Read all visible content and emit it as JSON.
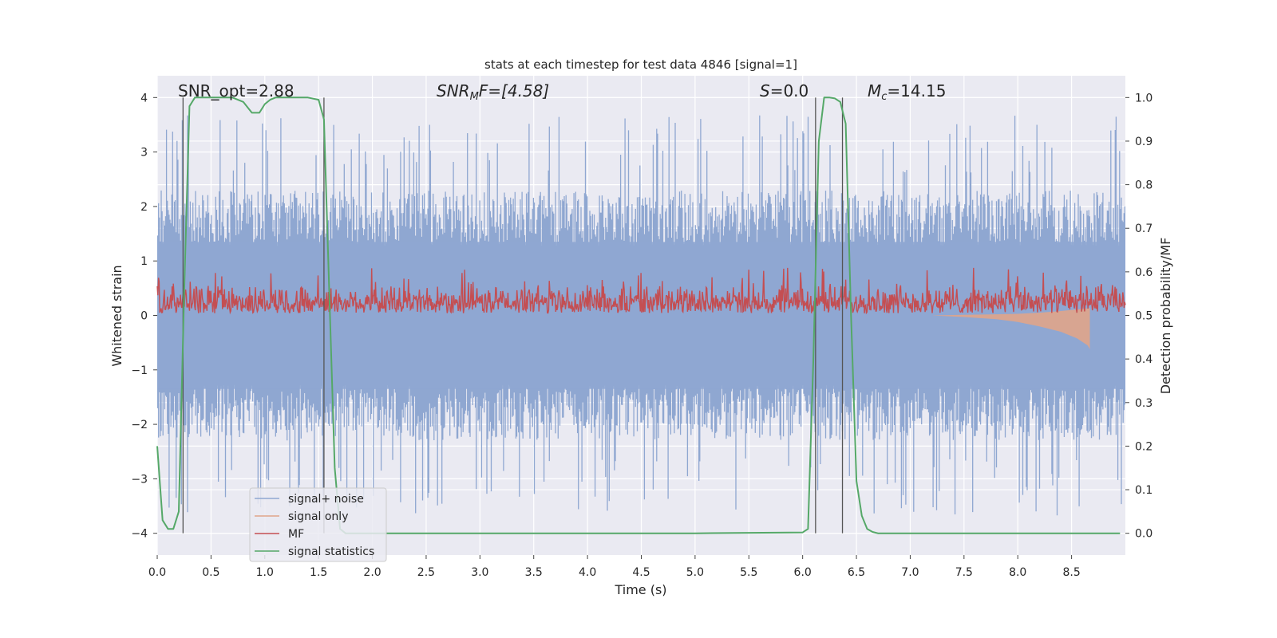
{
  "chart_data": {
    "type": "line",
    "title": "stats at each timestep for test data 4846 [signal=1]",
    "xlabel": "Time (s)",
    "ylabel_left": "Whitened strain",
    "ylabel_right": "Detection probability/MF",
    "xlim": [
      0.0,
      9.0
    ],
    "ylim_left": [
      -4.4,
      4.4
    ],
    "ylim_right": [
      -0.05,
      1.05
    ],
    "xticks": [
      "0.0",
      "0.5",
      "1.0",
      "1.5",
      "2.0",
      "2.5",
      "3.0",
      "3.5",
      "4.0",
      "4.5",
      "5.0",
      "5.5",
      "6.0",
      "6.5",
      "7.0",
      "7.5",
      "8.0",
      "8.5"
    ],
    "yticks_left": [
      "4",
      "3",
      "2",
      "1",
      "0",
      "−1",
      "−2",
      "−3",
      "−4"
    ],
    "yticks_right": [
      "1.0",
      "0.9",
      "0.8",
      "0.7",
      "0.6",
      "0.5",
      "0.4",
      "0.3",
      "0.2",
      "0.1",
      "0.0"
    ],
    "annotations": {
      "snr_opt": "SNR_opt=2.88",
      "snr_mf_sym": "SNR",
      "snr_mf_sub": "M",
      "snr_mf_rest": "F=[4.58]",
      "s_sym": "S",
      "s_rest": "=0.0",
      "mc_sym": "M",
      "mc_sub": "c",
      "mc_rest": "=14.15"
    },
    "grid": true,
    "legend": {
      "placement": "lower-left",
      "entries": [
        "signal+ noise",
        "signal only",
        "MF",
        "signal statistics"
      ]
    },
    "colors": {
      "signal_noise": "#8fa7d1",
      "signal_only": "#e0a58a",
      "mf": "#c44e52",
      "signal_statistics": "#55a868",
      "vlines": "#555555",
      "background": "#eaeaf2"
    },
    "series": [
      {
        "name": "signal+ noise",
        "axis": "left",
        "description_values": "noise band roughly ±2 with peaks to about ±3.5",
        "amplitude_typical": 1.7,
        "amplitude_peak": 3.5
      },
      {
        "name": "signal only",
        "axis": "left",
        "x": [
          7.2,
          7.5,
          7.8,
          8.0,
          8.2,
          8.4,
          8.55,
          8.65,
          8.67
        ],
        "lower": [
          0.0,
          -0.03,
          -0.07,
          -0.12,
          -0.2,
          -0.3,
          -0.42,
          -0.55,
          -0.62
        ],
        "upper": [
          0.0,
          0.01,
          0.02,
          0.03,
          0.05,
          0.08,
          0.11,
          0.13,
          0.14
        ]
      },
      {
        "name": "MF",
        "axis": "right",
        "baseline": 0.505,
        "typical_max": 0.58,
        "peak_max": 0.61
      },
      {
        "name": "signal statistics",
        "axis": "right",
        "x": [
          0.0,
          0.05,
          0.1,
          0.15,
          0.2,
          0.25,
          0.3,
          0.35,
          0.4,
          0.5,
          0.6,
          0.7,
          0.8,
          0.88,
          0.95,
          1.0,
          1.05,
          1.1,
          1.2,
          1.3,
          1.4,
          1.5,
          1.55,
          1.6,
          1.65,
          1.7,
          1.75,
          1.8,
          2.0,
          5.0,
          6.0,
          6.05,
          6.1,
          6.15,
          6.2,
          6.25,
          6.3,
          6.35,
          6.4,
          6.45,
          6.5,
          6.55,
          6.6,
          6.65,
          6.7,
          7.0,
          8.95
        ],
        "y": [
          0.2,
          0.03,
          0.01,
          0.01,
          0.05,
          0.55,
          0.98,
          1.0,
          1.0,
          1.0,
          1.0,
          1.0,
          0.99,
          0.965,
          0.965,
          0.985,
          0.995,
          1.0,
          1.0,
          1.0,
          1.0,
          0.995,
          0.95,
          0.55,
          0.15,
          0.01,
          0.0,
          0.0,
          0.0,
          0.0,
          0.002,
          0.01,
          0.4,
          0.9,
          1.0,
          1.0,
          0.998,
          0.99,
          0.94,
          0.5,
          0.12,
          0.04,
          0.01,
          0.003,
          0.0,
          0.0,
          0.0
        ]
      }
    ],
    "vertical_lines_x": [
      0.24,
      1.55,
      6.12,
      6.37
    ]
  }
}
